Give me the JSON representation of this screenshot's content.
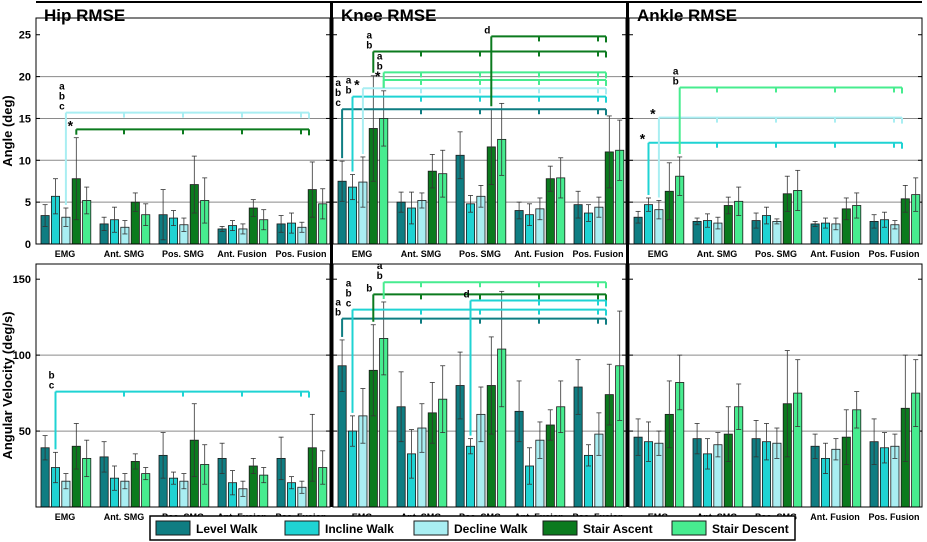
{
  "colors": {
    "level_walk": "#0f7d82",
    "incline_walk": "#1fd3d3",
    "decline_walk": "#a9eef2",
    "stair_ascent": "#0b7a1e",
    "stair_descent": "#47ec8f",
    "frame": "#000000",
    "gridline": "#8a8a8a"
  },
  "chart_data": {
    "type": "bar",
    "categories": [
      "EMG",
      "Ant. SMG",
      "Pos. SMG",
      "Ant. Fusion",
      "Pos. Fusion"
    ],
    "series_names": [
      "Level Walk",
      "Incline Walk",
      "Decline Walk",
      "Stair Ascent",
      "Stair Descent"
    ],
    "legend": {
      "position": "bottom-center",
      "items": [
        "Level Walk",
        "Incline Walk",
        "Decline Walk",
        "Stair Ascent",
        "Stair Descent"
      ]
    },
    "rows": [
      {
        "ylabel": "Angle (deg)",
        "ylim": [
          0,
          27
        ],
        "yticks": [
          "0",
          "5",
          "10",
          "15",
          "20",
          "25"
        ],
        "ytick_values": [
          0,
          5,
          10,
          15,
          20,
          25
        ],
        "gridlines": [
          5,
          10,
          15,
          20
        ],
        "panels": [
          {
            "title": "Hip RMSE",
            "values": [
              [
                3.4,
                5.7,
                3.2,
                7.8,
                5.2
              ],
              [
                2.4,
                2.9,
                2.0,
                5.0,
                3.5
              ],
              [
                3.5,
                3.1,
                2.3,
                7.1,
                5.2
              ],
              [
                1.8,
                2.2,
                1.8,
                4.3,
                2.9
              ],
              [
                2.4,
                2.5,
                2.0,
                6.5,
                4.8
              ]
            ],
            "errors": [
              [
                1.3,
                2.1,
                1.1,
                4.9,
                1.6
              ],
              [
                0.8,
                1.5,
                0.8,
                1.1,
                1.3
              ],
              [
                3.0,
                0.9,
                0.8,
                3.4,
                2.7
              ],
              [
                0.3,
                0.6,
                0.6,
                1.0,
                1.2
              ],
              [
                1.0,
                1.2,
                0.6,
                3.3,
                1.8
              ]
            ],
            "brackets": [
              {
                "y": 13.7,
                "from": 0,
                "to": 4,
                "series": "Stair Ascent",
                "labels": [
                  "*"
                ]
              },
              {
                "y": 15.7,
                "from": 0,
                "to": 4,
                "series": "Decline Walk",
                "labels": [
                  "a",
                  "b",
                  "c"
                ]
              }
            ]
          },
          {
            "title": "Knee RMSE",
            "values": [
              [
                7.5,
                6.8,
                7.4,
                13.8,
                15.0
              ],
              [
                5.0,
                4.3,
                5.2,
                8.7,
                8.4
              ],
              [
                10.6,
                4.8,
                5.7,
                11.6,
                12.5
              ],
              [
                4.0,
                3.5,
                4.2,
                7.8,
                7.9
              ],
              [
                4.7,
                3.7,
                4.4,
                11.0,
                11.2
              ]
            ],
            "errors": [
              [
                2.4,
                1.5,
                3.0,
                6.3,
                3.3
              ],
              [
                1.2,
                1.9,
                0.9,
                2.0,
                2.8
              ],
              [
                2.8,
                1.0,
                1.3,
                4.5,
                4.3
              ],
              [
                1.0,
                1.3,
                1.3,
                1.5,
                2.4
              ],
              [
                1.6,
                1.0,
                1.2,
                4.3,
                3.6
              ]
            ],
            "brackets": [
              {
                "y": 16.1,
                "from": 0,
                "to": 4,
                "series": "Level Walk",
                "labels": [
                  "a",
                  "b",
                  "c"
                ]
              },
              {
                "y": 17.6,
                "from": 0,
                "to": 4,
                "series": "Incline Walk",
                "labels": [
                  "a",
                  "b"
                ]
              },
              {
                "y": 18.6,
                "from": 0,
                "to": 4,
                "series": "Decline Walk",
                "labels": [
                  "*"
                ]
              },
              {
                "y": 19.6,
                "from": 0,
                "to": 4,
                "series": "Stair Descent",
                "labels": [
                  "*"
                ]
              },
              {
                "y": 20.5,
                "from": 0,
                "to": 4,
                "series": "Stair Descent",
                "labels": [
                  "a",
                  "b"
                ]
              },
              {
                "y": 23.0,
                "from": 0,
                "to": 4,
                "series": "Stair Ascent",
                "labels": [
                  "a",
                  "b"
                ]
              },
              {
                "y": 24.8,
                "from": 2,
                "to": 4,
                "series": "Stair Ascent",
                "labels": [
                  "d"
                ]
              }
            ]
          },
          {
            "title": "Ankle RMSE",
            "values": [
              [
                3.2,
                4.7,
                4.1,
                6.3,
                8.1
              ],
              [
                2.7,
                2.8,
                2.5,
                4.6,
                5.1
              ],
              [
                2.8,
                3.4,
                2.7,
                6.0,
                6.4
              ],
              [
                2.4,
                2.5,
                2.4,
                4.2,
                4.6
              ],
              [
                2.7,
                2.9,
                2.3,
                5.4,
                5.9
              ]
            ],
            "errors": [
              [
                0.7,
                0.8,
                1.1,
                3.4,
                2.3
              ],
              [
                0.4,
                0.8,
                0.7,
                1.0,
                1.7
              ],
              [
                0.9,
                1.0,
                0.3,
                2.1,
                2.4
              ],
              [
                0.3,
                0.6,
                0.7,
                1.3,
                1.5
              ],
              [
                0.8,
                0.9,
                0.5,
                1.6,
                2.0
              ]
            ],
            "brackets": [
              {
                "y": 12.1,
                "from": 0,
                "to": 4,
                "series": "Incline Walk",
                "labels": [
                  "*"
                ]
              },
              {
                "y": 15.1,
                "from": 0,
                "to": 4,
                "series": "Decline Walk",
                "labels": [
                  "*"
                ]
              },
              {
                "y": 18.7,
                "from": 0,
                "to": 4,
                "series": "Stair Descent",
                "labels": [
                  "a",
                  "b"
                ]
              }
            ]
          }
        ]
      },
      {
        "ylabel": "Angular Velocity (deg/s)",
        "ylim": [
          0,
          160
        ],
        "yticks": [
          "50",
          "100",
          "150"
        ],
        "ytick_values": [
          50,
          100,
          150
        ],
        "gridlines": [
          50,
          100
        ],
        "panels": [
          {
            "title": "",
            "values": [
              [
                39,
                26,
                17,
                40,
                32
              ],
              [
                33,
                19,
                17,
                30,
                22
              ],
              [
                34,
                19,
                17,
                44,
                28
              ],
              [
                32,
                16,
                12,
                27,
                21
              ],
              [
                32,
                16,
                13,
                39,
                26
              ]
            ],
            "errors": [
              [
                8,
                10,
                5,
                15,
                12
              ],
              [
                10,
                8,
                5,
                5,
                4
              ],
              [
                15,
                4,
                5,
                24,
                13
              ],
              [
                10,
                8,
                5,
                5,
                5
              ],
              [
                14,
                4,
                4,
                22,
                11
              ]
            ],
            "brackets": [
              {
                "y": 76,
                "from": 0,
                "to": 4,
                "series": "Incline Walk",
                "labels": [
                  "b",
                  "c"
                ]
              }
            ]
          },
          {
            "title": "",
            "values": [
              [
                93,
                50,
                60,
                90,
                111
              ],
              [
                66,
                35,
                52,
                62,
                71
              ],
              [
                80,
                40,
                61,
                80,
                104
              ],
              [
                63,
                27,
                44,
                54,
                66
              ],
              [
                79,
                34,
                48,
                74,
                93
              ]
            ],
            "errors": [
              [
                17,
                10,
                18,
                30,
                24
              ],
              [
                23,
                16,
                16,
                20,
                22
              ],
              [
                22,
                5,
                18,
                32,
                38
              ],
              [
                20,
                12,
                12,
                10,
                17
              ],
              [
                18,
                7,
                14,
                20,
                36
              ]
            ],
            "brackets": [
              {
                "y": 124,
                "from": 0,
                "to": 4,
                "series": "Level Walk",
                "labels": [
                  "a",
                  "b"
                ]
              },
              {
                "y": 130,
                "from": 0,
                "to": 4,
                "series": "Incline Walk",
                "labels": [
                  "a",
                  "b",
                  "c"
                ]
              },
              {
                "y": 140,
                "from": 0,
                "to": 4,
                "series": "Stair Ascent",
                "labels": [
                  "b"
                ]
              },
              {
                "y": 148,
                "from": 0,
                "to": 4,
                "series": "Stair Descent",
                "labels": [
                  "a",
                  "b"
                ]
              },
              {
                "y": 136,
                "from": 2,
                "to": 4,
                "series": "Incline Walk",
                "labels": [
                  "d"
                ]
              }
            ]
          },
          {
            "title": "",
            "values": [
              [
                46,
                43,
                42,
                61,
                82
              ],
              [
                45,
                35,
                41,
                48,
                66
              ],
              [
                45,
                43,
                42,
                68,
                75
              ],
              [
                40,
                32,
                38,
                46,
                64
              ],
              [
                43,
                39,
                40,
                65,
                75
              ]
            ],
            "errors": [
              [
                12,
                13,
                8,
                22,
                18
              ],
              [
                10,
                10,
                8,
                18,
                15
              ],
              [
                12,
                12,
                10,
                35,
                22
              ],
              [
                8,
                10,
                7,
                18,
                12
              ],
              [
                15,
                10,
                8,
                35,
                22
              ]
            ],
            "brackets": []
          }
        ]
      }
    ]
  }
}
